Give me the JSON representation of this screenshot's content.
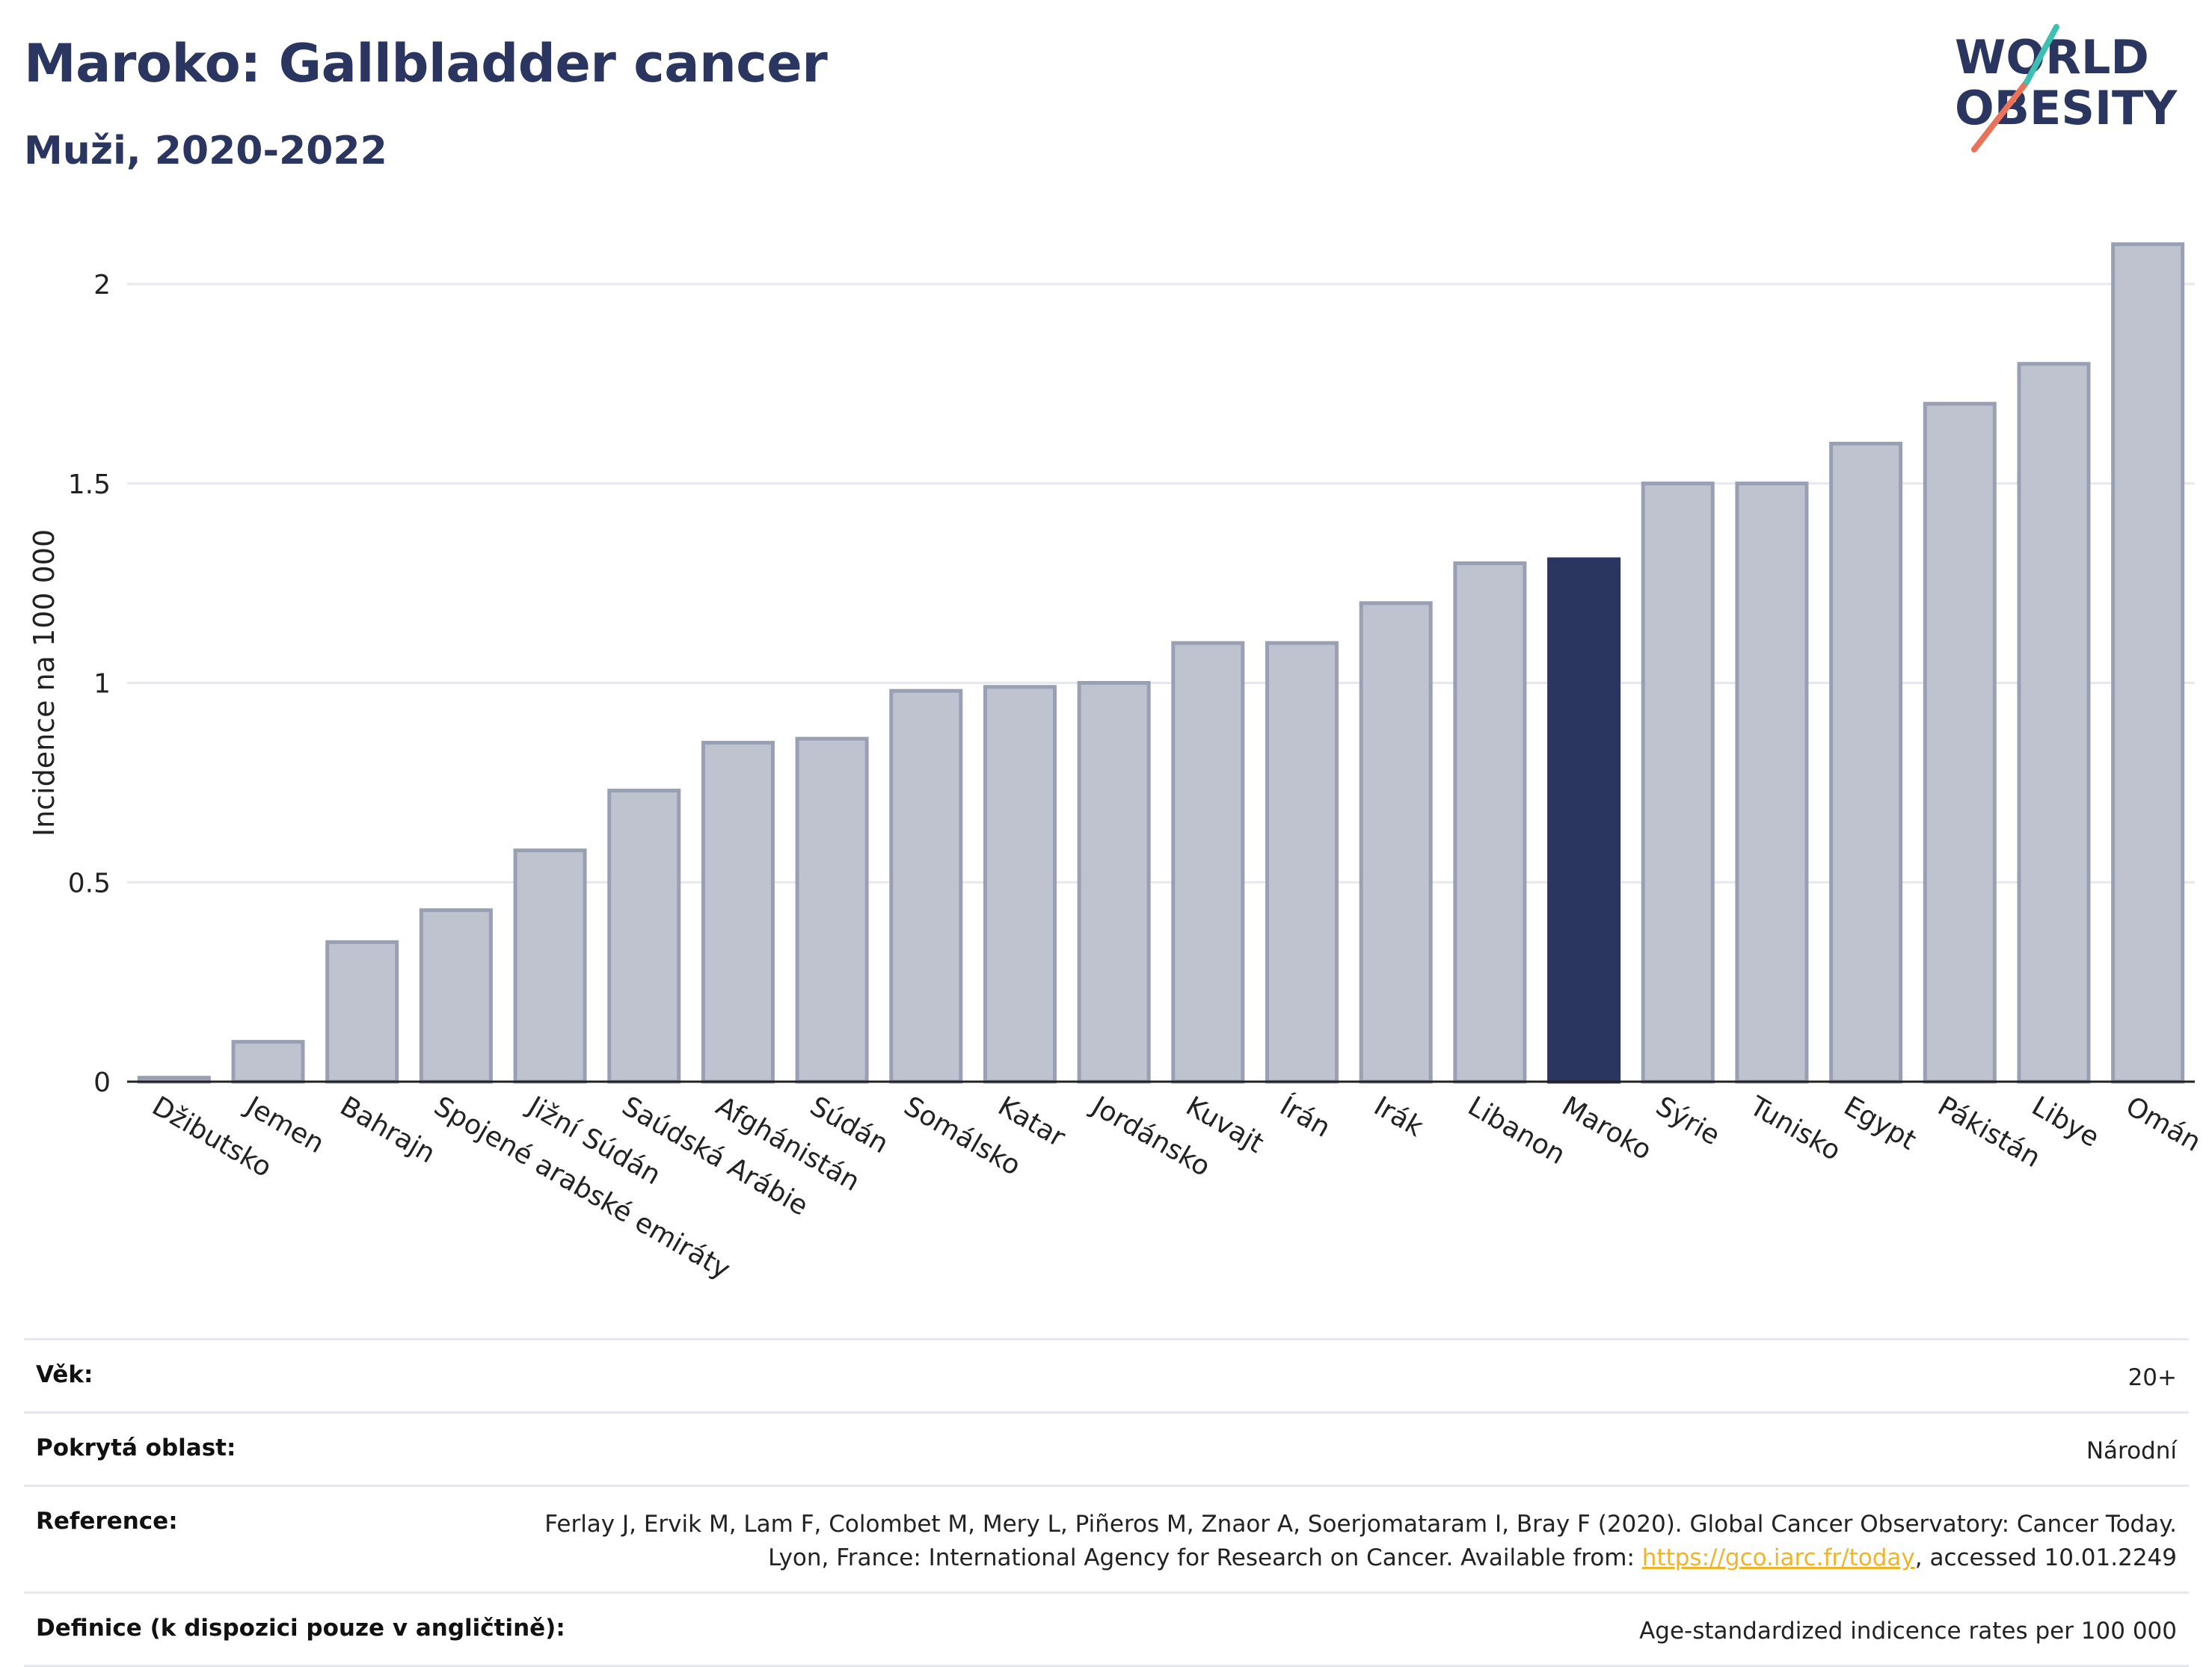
{
  "header": {
    "title": "Maroko: Gallbladder cancer",
    "subtitle": "Muži, 2020-2022"
  },
  "logo": {
    "line1": "WORLD",
    "line2": "OBESITY"
  },
  "colors": {
    "bar": "#bfc3d0",
    "bar_stroke": "#9aa0b4",
    "highlight": "#2a3560",
    "grid": "#e6e8ee"
  },
  "chart_data": {
    "type": "bar",
    "ylabel": "Incidence na 100 000",
    "ylim": [
      0,
      2.15
    ],
    "yticks": [
      0,
      0.5,
      1,
      1.5,
      2
    ],
    "ytick_labels": [
      "0",
      "0.5",
      "1",
      "1.5",
      "2"
    ],
    "highlight": "Maroko",
    "categories": [
      "Džibutsko",
      "Jemen",
      "Bahrajn",
      "Spojené arabské emiráty",
      "Jižní Súdán",
      "Saúdská Arábie",
      "Afghánistán",
      "Súdán",
      "Somálsko",
      "Katar",
      "Jordánsko",
      "Kuvajt",
      "Írán",
      "Irák",
      "Libanon",
      "Maroko",
      "Sýrie",
      "Tunisko",
      "Egypt",
      "Pákistán",
      "Libye",
      "Omán"
    ],
    "values": [
      0.01,
      0.1,
      0.35,
      0.43,
      0.58,
      0.73,
      0.85,
      0.86,
      0.98,
      0.99,
      1.0,
      1.1,
      1.1,
      1.2,
      1.3,
      1.31,
      1.5,
      1.5,
      1.6,
      1.7,
      1.8,
      2.1
    ]
  },
  "info": {
    "rows": [
      {
        "label": "Věk:",
        "value": "20+"
      },
      {
        "label": "Pokrytá oblast:",
        "value": "Národní"
      },
      {
        "label": "Reference:",
        "value_pre": "Ferlay J, Ervik M, Lam F, Colombet M, Mery L, Piñeros M, Znaor A, Soerjomataram I, Bray F (2020). Global Cancer Observatory: Cancer Today. Lyon, France: International Agency for Research on Cancer. Available from: ",
        "link": "https://gco.iarc.fr/today",
        "value_post": ", accessed 10.01.2249"
      },
      {
        "label": "Definice (k dispozici pouze v angličtině):",
        "value": "Age-standardized indicence rates per 100 000"
      }
    ]
  }
}
